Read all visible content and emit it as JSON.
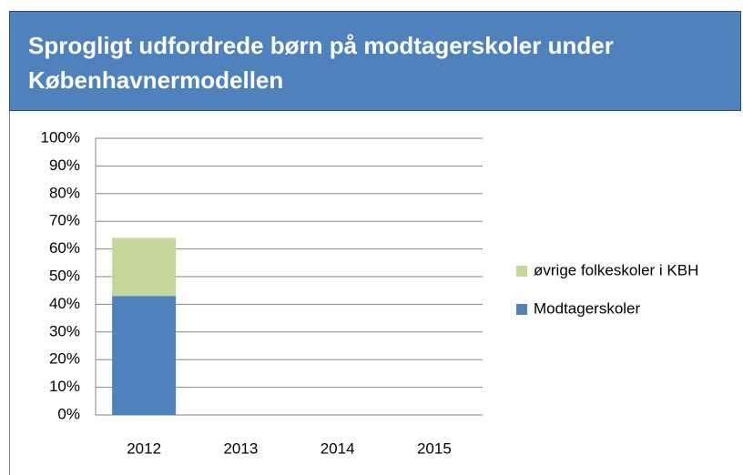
{
  "chart_data": {
    "type": "stacked_bar",
    "title": "Sprogligt udfordrede børn på modtagerskoler under Københavnermodellen",
    "categories": [
      "2012",
      "2013",
      "2014",
      "2015"
    ],
    "series": [
      {
        "name": "Modtagerskoler",
        "color": "#4f81bd",
        "values": [
          43,
          null,
          null,
          null
        ]
      },
      {
        "name": "øvrige folkeskoler i KBH",
        "color": "#c3d69b",
        "values": [
          21,
          null,
          null,
          null
        ]
      }
    ],
    "ylim": [
      0,
      100
    ],
    "yticks": [
      {
        "value": 0,
        "label": "0%"
      },
      {
        "value": 10,
        "label": "10%"
      },
      {
        "value": 20,
        "label": "20%"
      },
      {
        "value": 30,
        "label": "30%"
      },
      {
        "value": 40,
        "label": "40%"
      },
      {
        "value": 50,
        "label": "50%"
      },
      {
        "value": 60,
        "label": "60%"
      },
      {
        "value": 70,
        "label": "70%"
      },
      {
        "value": 80,
        "label": "80%"
      },
      {
        "value": 90,
        "label": "90%"
      },
      {
        "value": 100,
        "label": "100%"
      }
    ],
    "grid": true,
    "legend": "right"
  }
}
